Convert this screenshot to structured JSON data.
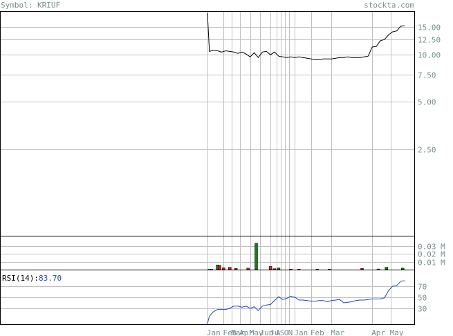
{
  "header": {
    "symbol_label": "Symbol: KRIUF",
    "site": "stockta.com"
  },
  "rsi": {
    "label": "RSI(14):",
    "value": "83.70"
  },
  "colors": {
    "axis_text": "#7a8f8f",
    "grid": "#c0c0c0",
    "frame": "#000000",
    "price_line": "#000000",
    "rsi_line": "#2244bb",
    "rsi_value": "#2244bb",
    "volume_up": "#1a7a1a",
    "volume_down": "#cc2222"
  },
  "chart_data": [
    {
      "type": "line",
      "name": "price",
      "y_scale": "log",
      "y_ticks": [
        "15.00",
        "12.50",
        "10.00",
        "7.50",
        "5.00",
        "2.50"
      ],
      "y_tick_values": [
        15,
        12.5,
        10,
        7.5,
        5,
        2.5
      ],
      "ylim": [
        0.7,
        19
      ],
      "x": [
        0,
        1,
        3,
        5,
        7,
        9,
        11,
        13,
        15,
        17,
        19,
        21,
        23,
        25,
        27,
        29,
        31,
        33,
        35,
        37,
        39,
        41,
        43,
        45,
        47,
        49,
        51,
        53,
        55,
        57,
        59,
        61,
        63,
        65,
        67,
        69,
        71,
        73,
        75,
        77,
        79,
        81,
        83,
        85,
        87,
        89,
        91,
        93,
        95,
        97
      ],
      "y": [
        18.5,
        10.5,
        10.7,
        10.6,
        10.4,
        10.6,
        10.5,
        10.4,
        10.2,
        10.4,
        10.1,
        9.7,
        10.3,
        9.6,
        10.4,
        10.5,
        10.0,
        10.4,
        9.8,
        9.7,
        9.6,
        9.7,
        9.6,
        9.7,
        9.6,
        9.5,
        9.4,
        9.3,
        9.3,
        9.4,
        9.4,
        9.4,
        9.5,
        9.6,
        9.6,
        9.7,
        9.6,
        9.6,
        9.6,
        9.7,
        9.8,
        11.2,
        11.3,
        12.3,
        12.5,
        13.4,
        14.0,
        14.2,
        15.2,
        15.3
      ]
    },
    {
      "type": "bar",
      "name": "volume",
      "y_ticks": [
        "0.03 M",
        "0.02 M",
        "0.01 M"
      ],
      "y_tick_values": [
        0.03,
        0.02,
        0.01
      ],
      "ylim": [
        0,
        0.043
      ],
      "bars": [
        {
          "x": 1,
          "v": 0.0004,
          "up": true
        },
        {
          "x": 2,
          "v": 0.0004,
          "up": true
        },
        {
          "x": 5,
          "v": 0.006,
          "up": true
        },
        {
          "x": 6,
          "v": 0.0055,
          "up": false
        },
        {
          "x": 8,
          "v": 0.0025,
          "up": false
        },
        {
          "x": 11,
          "v": 0.003,
          "up": false
        },
        {
          "x": 14,
          "v": 0.0015,
          "up": false
        },
        {
          "x": 20,
          "v": 0.002,
          "up": false
        },
        {
          "x": 24,
          "v": 0.0335,
          "up": true
        },
        {
          "x": 31,
          "v": 0.004,
          "up": false
        },
        {
          "x": 33,
          "v": 0.0012,
          "up": false
        },
        {
          "x": 35,
          "v": 0.0022,
          "up": true
        },
        {
          "x": 41,
          "v": 0.0006,
          "up": false
        },
        {
          "x": 45,
          "v": 0.0005,
          "up": false
        },
        {
          "x": 54,
          "v": 0.0005,
          "up": false
        },
        {
          "x": 60,
          "v": 0.0005,
          "up": false
        },
        {
          "x": 76,
          "v": 0.0015,
          "up": false
        },
        {
          "x": 84,
          "v": 0.0008,
          "up": false
        },
        {
          "x": 88,
          "v": 0.003,
          "up": true
        },
        {
          "x": 96,
          "v": 0.002,
          "up": true
        }
      ]
    },
    {
      "type": "line",
      "name": "RSI(14)",
      "y_ticks": [
        "70",
        "50",
        "30"
      ],
      "y_tick_values": [
        70,
        50,
        30
      ],
      "ylim": [
        0,
        100
      ],
      "x": [
        0,
        1,
        3,
        5,
        7,
        9,
        11,
        13,
        15,
        17,
        19,
        21,
        23,
        25,
        27,
        29,
        31,
        33,
        35,
        37,
        39,
        41,
        43,
        45,
        47,
        49,
        51,
        53,
        55,
        57,
        59,
        61,
        63,
        65,
        67,
        69,
        71,
        73,
        75,
        77,
        79,
        81,
        83,
        85,
        87,
        89,
        91,
        93,
        95,
        97
      ],
      "y": [
        2,
        16,
        24,
        28,
        28,
        28,
        30,
        34,
        34,
        32,
        34,
        30,
        33,
        26,
        34,
        36,
        37,
        44,
        51,
        46,
        48,
        52,
        50,
        45,
        45,
        44,
        43,
        43,
        44,
        44,
        42,
        44,
        45,
        46,
        40,
        41,
        42,
        44,
        45,
        45,
        46,
        47,
        47,
        47,
        49,
        62,
        70,
        71,
        79,
        80
      ]
    }
  ],
  "x_axis": {
    "labels": [
      {
        "x": 0,
        "text": "Jan"
      },
      {
        "x": 8,
        "text": "Feb"
      },
      {
        "x": 12,
        "text": "Mar"
      },
      {
        "x": 16,
        "text": "Apr"
      },
      {
        "x": 21,
        "text": "May"
      },
      {
        "x": 26,
        "text": "Jun"
      },
      {
        "x": 31,
        "text": "Ju"
      },
      {
        "x": 34,
        "text": "A"
      },
      {
        "x": 36,
        "text": "S"
      },
      {
        "x": 38,
        "text": "O"
      },
      {
        "x": 40,
        "text": "N"
      },
      {
        "x": 43,
        "text": "Jan"
      },
      {
        "x": 51,
        "text": "Feb"
      },
      {
        "x": 61,
        "text": "Mar"
      },
      {
        "x": 81,
        "text": "Apr"
      },
      {
        "x": 90,
        "text": "May"
      }
    ],
    "gridlines": [
      0,
      8,
      12,
      16,
      21,
      26,
      31,
      34,
      36,
      38,
      40,
      43,
      51,
      61,
      81,
      90
    ],
    "xlim": [
      -2,
      102
    ]
  }
}
